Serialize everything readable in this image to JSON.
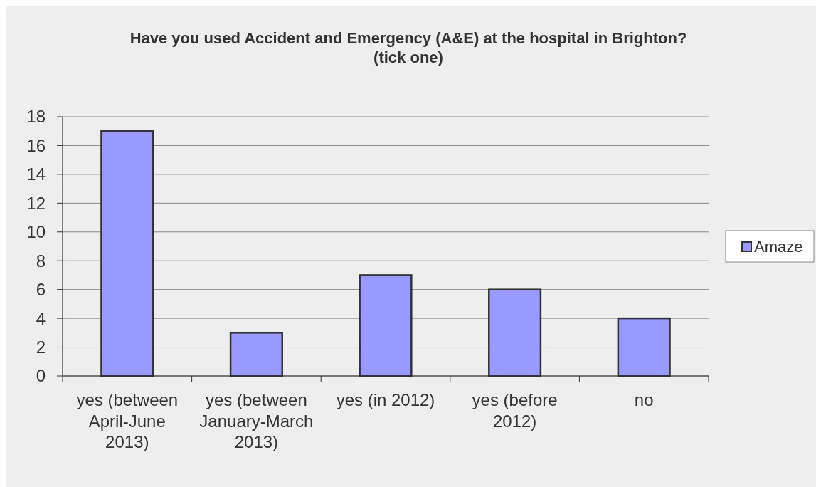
{
  "chart_data": {
    "type": "bar",
    "title": "Have you used Accident and Emergency (A&E) at the hospital in Brighton?\n(tick one)",
    "categories": [
      "yes (between April-June 2013)",
      "yes (between January-March 2013)",
      "yes (in 2012)",
      "yes (before 2012)",
      "no"
    ],
    "series": [
      {
        "name": "Amaze",
        "color": "#9999ff",
        "values": [
          17,
          3,
          7,
          6,
          4
        ]
      }
    ],
    "ylim": [
      0,
      18
    ],
    "yticks": [
      0,
      2,
      4,
      6,
      8,
      10,
      12,
      14,
      16,
      18
    ],
    "grid": "y",
    "legend": "right"
  }
}
